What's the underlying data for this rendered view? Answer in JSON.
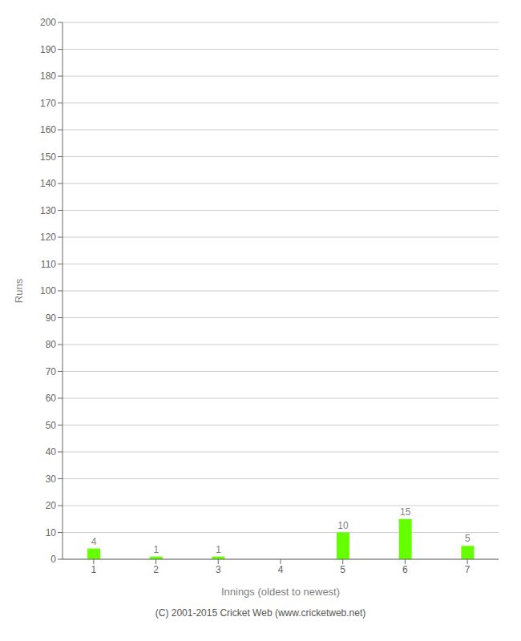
{
  "chart_data": {
    "type": "bar",
    "categories": [
      "1",
      "2",
      "3",
      "4",
      "5",
      "6",
      "7"
    ],
    "values": [
      4,
      1,
      1,
      0,
      10,
      15,
      5
    ],
    "color": "#66ff00",
    "xlabel": "Innings (oldest to newest)",
    "ylabel": "Runs",
    "ylim": [
      0,
      200
    ],
    "yticks": [
      0,
      10,
      20,
      30,
      40,
      50,
      60,
      70,
      80,
      90,
      100,
      110,
      120,
      130,
      140,
      150,
      160,
      170,
      180,
      190,
      200
    ],
    "grid": true,
    "data_labels": true,
    "annotations": [
      "(C) 2001-2015 Cricket Web (www.cricketweb.net)"
    ]
  }
}
